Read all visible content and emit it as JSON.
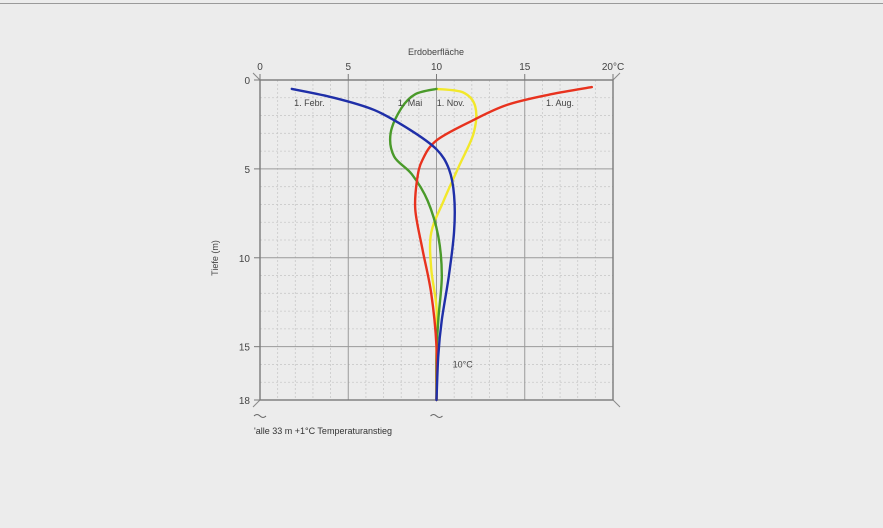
{
  "chart_data": {
    "type": "line",
    "title": "",
    "xlabel": "Erdoberfläche",
    "ylabel": "Tiefe (m)",
    "xlim": [
      0,
      20
    ],
    "ylim": [
      0,
      18
    ],
    "x_ticks": [
      {
        "v": 0,
        "label": "0"
      },
      {
        "v": 5,
        "label": "5"
      },
      {
        "v": 10,
        "label": "10"
      },
      {
        "v": 15,
        "label": "15"
      },
      {
        "v": 20,
        "label": "20°C"
      }
    ],
    "y_ticks": [
      {
        "v": 0,
        "label": "0"
      },
      {
        "v": 5,
        "label": "5"
      },
      {
        "v": 10,
        "label": "10"
      },
      {
        "v": 15,
        "label": "15"
      },
      {
        "v": 18,
        "label": "18"
      }
    ],
    "grid": true,
    "series": [
      {
        "name": "1. Febr.",
        "color": "#1f2fa8",
        "points": [
          [
            1.8,
            0.5
          ],
          [
            4.2,
            1.0
          ],
          [
            6.5,
            1.7
          ],
          [
            8.5,
            2.8
          ],
          [
            10.0,
            3.9
          ],
          [
            10.7,
            5.0
          ],
          [
            11.0,
            6.5
          ],
          [
            11.0,
            8.5
          ],
          [
            10.7,
            11.0
          ],
          [
            10.3,
            13.5
          ],
          [
            10.1,
            15.5
          ],
          [
            10.0,
            18.0
          ]
        ]
      },
      {
        "name": "1. Mai",
        "color": "#4a9a2a",
        "points": [
          [
            10.0,
            0.5
          ],
          [
            8.8,
            0.8
          ],
          [
            8.0,
            1.6
          ],
          [
            7.4,
            3.0
          ],
          [
            7.6,
            4.3
          ],
          [
            8.6,
            5.3
          ],
          [
            9.5,
            6.8
          ],
          [
            10.1,
            8.8
          ],
          [
            10.3,
            11.0
          ],
          [
            10.1,
            13.5
          ],
          [
            10.0,
            15.5
          ],
          [
            10.0,
            18.0
          ]
        ]
      },
      {
        "name": "1. Nov.",
        "color": "#f2e82a",
        "points": [
          [
            10.0,
            0.5
          ],
          [
            11.5,
            0.7
          ],
          [
            12.2,
            1.5
          ],
          [
            12.1,
            3.0
          ],
          [
            11.3,
            4.8
          ],
          [
            10.4,
            6.8
          ],
          [
            9.7,
            8.6
          ],
          [
            9.7,
            10.6
          ],
          [
            10.0,
            12.8
          ],
          [
            10.0,
            15.0
          ],
          [
            10.0,
            18.0
          ]
        ]
      },
      {
        "name": "1. Aug.",
        "color": "#e8321e",
        "points": [
          [
            18.8,
            0.4
          ],
          [
            16.5,
            0.8
          ],
          [
            14.0,
            1.4
          ],
          [
            12.0,
            2.3
          ],
          [
            10.0,
            3.4
          ],
          [
            9.2,
            4.5
          ],
          [
            8.9,
            5.6
          ],
          [
            8.8,
            7.3
          ],
          [
            9.2,
            9.5
          ],
          [
            9.7,
            12.0
          ],
          [
            10.0,
            15.0
          ],
          [
            10.0,
            18.0
          ]
        ]
      }
    ],
    "annotations": [
      {
        "text": "10°C",
        "x": 10.8,
        "y": 16.0
      }
    ],
    "caption": "'alle 33 m +1°C Temperaturanstieg"
  }
}
